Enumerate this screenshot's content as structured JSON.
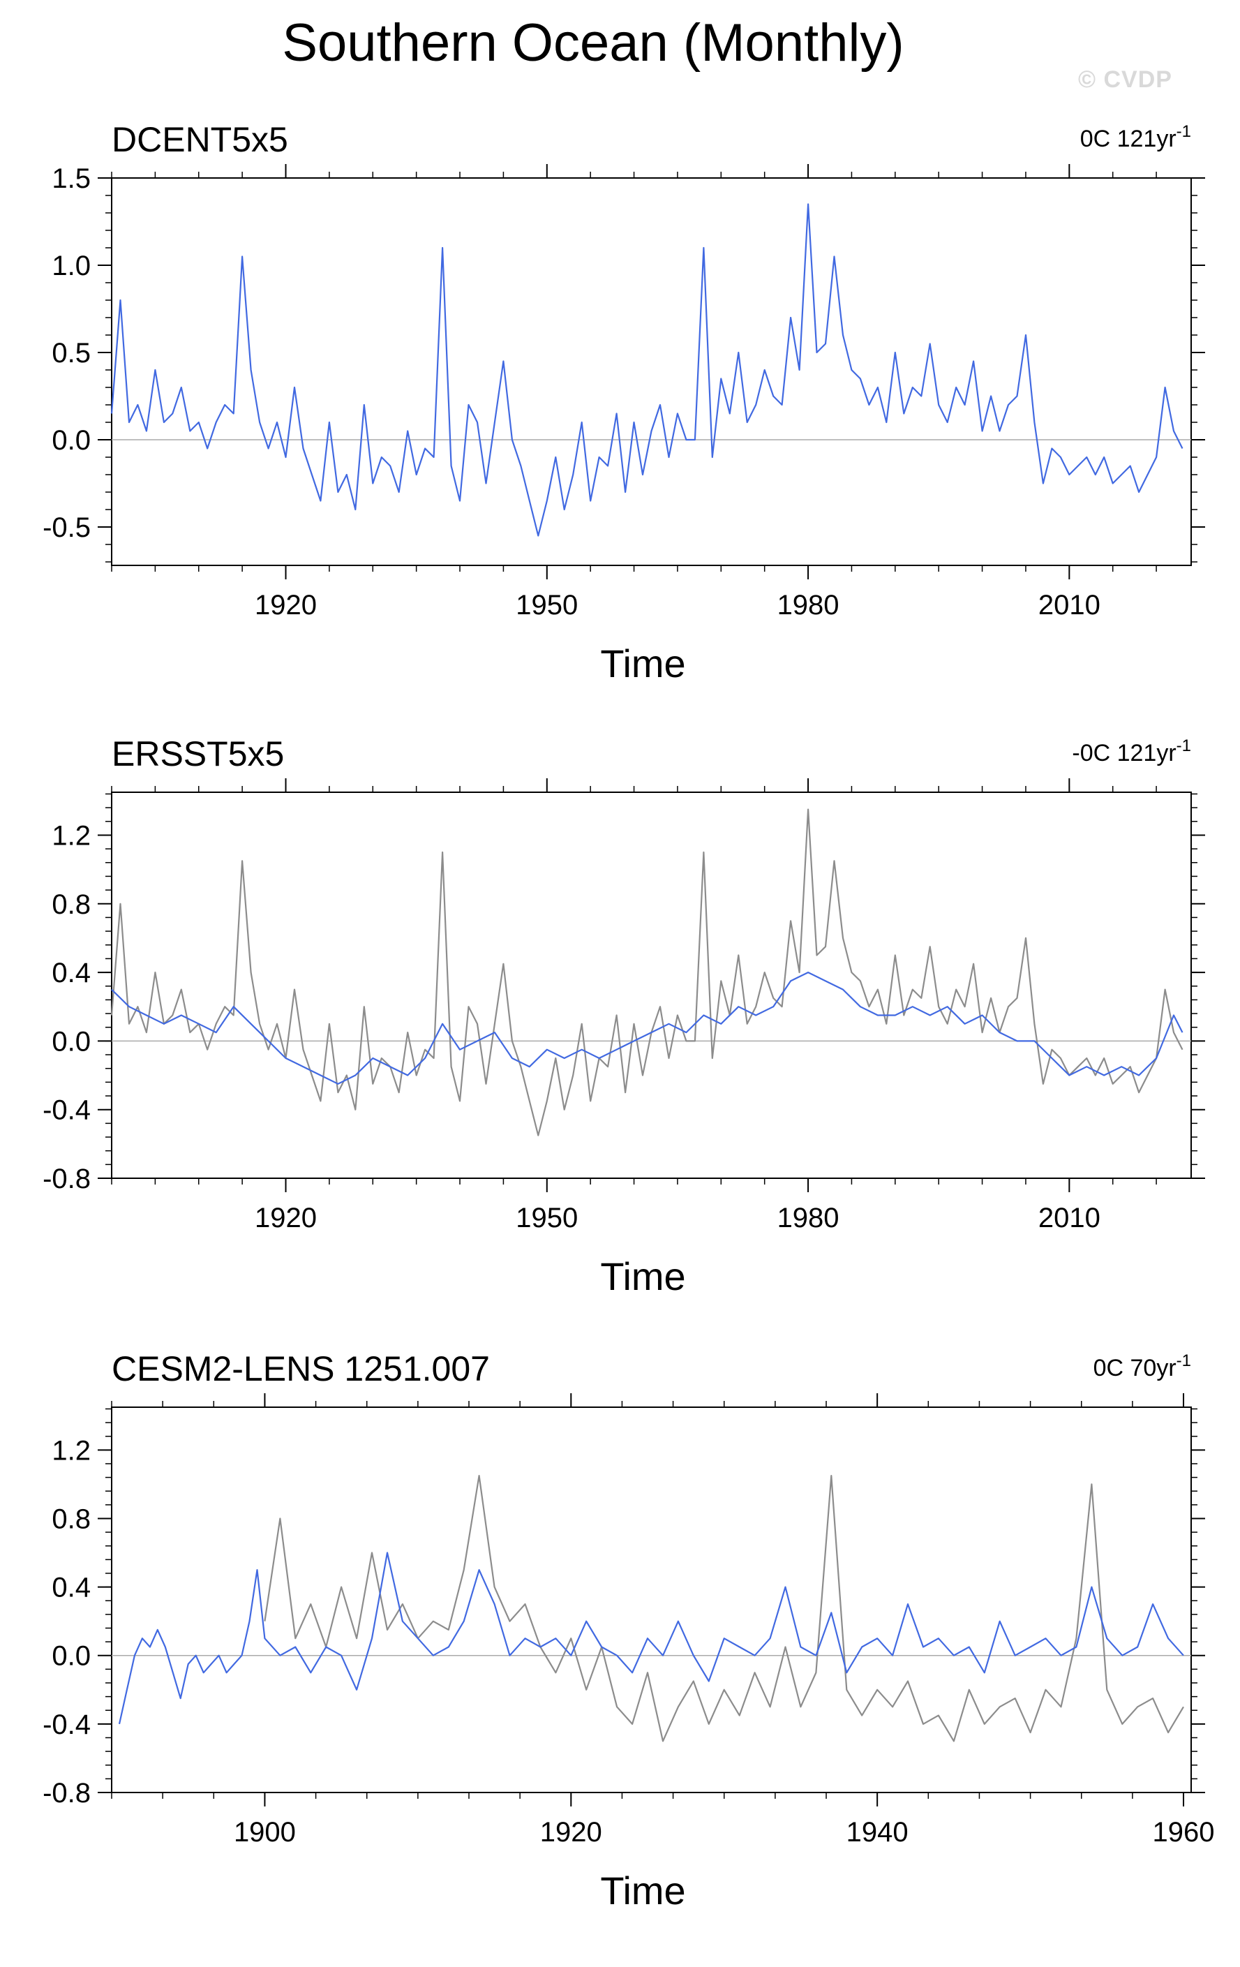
{
  "title": "Southern Ocean (Monthly)",
  "watermark": "© CVDP",
  "colors": {
    "primary": "#4169e1",
    "secondary": "#8c8c8c",
    "zero": "#aaaaaa",
    "axis": "#000000"
  },
  "chart_data": [
    {
      "type": "line",
      "panel_title": "DCENT5x5",
      "trend": {
        "value": "0C 121yr",
        "exponent": "-1"
      },
      "xlabel": "Time",
      "xlim": [
        1900,
        2024
      ],
      "xticks": [
        1920,
        1950,
        1980,
        2010
      ],
      "ylim": [
        -0.72,
        1.5
      ],
      "yticks": [
        1.5,
        1.0,
        0.5,
        0.0,
        -0.5
      ],
      "ytick_labels": [
        "1.5",
        "1.0",
        "0.5",
        "0.0",
        "-0.5"
      ],
      "grid": false,
      "series": [
        {
          "role": "monthly",
          "color": "#4169e1",
          "x": [
            1900,
            1901,
            1902,
            1903,
            1904,
            1905,
            1906,
            1907,
            1908,
            1909,
            1910,
            1911,
            1912,
            1913,
            1914,
            1915,
            1916,
            1917,
            1918,
            1919,
            1920,
            1921,
            1922,
            1923,
            1924,
            1925,
            1926,
            1927,
            1928,
            1929,
            1930,
            1931,
            1932,
            1933,
            1934,
            1935,
            1936,
            1937,
            1938,
            1939,
            1940,
            1941,
            1942,
            1943,
            1944,
            1945,
            1946,
            1947,
            1948,
            1949,
            1950,
            1951,
            1952,
            1953,
            1954,
            1955,
            1956,
            1957,
            1958,
            1959,
            1960,
            1961,
            1962,
            1963,
            1964,
            1965,
            1966,
            1967,
            1968,
            1969,
            1970,
            1971,
            1972,
            1973,
            1974,
            1975,
            1976,
            1977,
            1978,
            1979,
            1980,
            1981,
            1982,
            1983,
            1984,
            1985,
            1986,
            1987,
            1988,
            1989,
            1990,
            1991,
            1992,
            1993,
            1994,
            1995,
            1996,
            1997,
            1998,
            1999,
            2000,
            2001,
            2002,
            2003,
            2004,
            2005,
            2006,
            2007,
            2008,
            2009,
            2010,
            2011,
            2012,
            2013,
            2014,
            2015,
            2016,
            2017,
            2018,
            2019,
            2020,
            2021,
            2022,
            2023
          ],
          "y": [
            0.15,
            0.8,
            0.1,
            0.2,
            0.05,
            0.4,
            0.1,
            0.15,
            0.3,
            0.05,
            0.1,
            -0.05,
            0.1,
            0.2,
            0.15,
            1.05,
            0.4,
            0.1,
            -0.05,
            0.1,
            -0.1,
            0.3,
            -0.05,
            -0.2,
            -0.35,
            0.1,
            -0.3,
            -0.2,
            -0.4,
            0.2,
            -0.25,
            -0.1,
            -0.15,
            -0.3,
            0.05,
            -0.2,
            -0.05,
            -0.1,
            1.1,
            -0.15,
            -0.35,
            0.2,
            0.1,
            -0.25,
            0.1,
            0.45,
            0.0,
            -0.15,
            -0.35,
            -0.55,
            -0.35,
            -0.1,
            -0.4,
            -0.2,
            0.1,
            -0.35,
            -0.1,
            -0.15,
            0.15,
            -0.3,
            0.1,
            -0.2,
            0.05,
            0.2,
            -0.1,
            0.15,
            0.0,
            0.0,
            1.1,
            -0.1,
            0.35,
            0.15,
            0.5,
            0.1,
            0.2,
            0.4,
            0.25,
            0.2,
            0.7,
            0.4,
            1.35,
            0.5,
            0.55,
            1.05,
            0.6,
            0.4,
            0.35,
            0.2,
            0.3,
            0.1,
            0.5,
            0.15,
            0.3,
            0.25,
            0.55,
            0.2,
            0.1,
            0.3,
            0.2,
            0.45,
            0.05,
            0.25,
            0.05,
            0.2,
            0.25,
            0.6,
            0.1,
            -0.25,
            -0.05,
            -0.1,
            -0.2,
            -0.15,
            -0.1,
            -0.2,
            -0.1,
            -0.25,
            -0.2,
            -0.15,
            -0.3,
            -0.2,
            -0.1,
            0.3,
            0.05,
            -0.05
          ]
        }
      ]
    },
    {
      "type": "line",
      "panel_title": "ERSST5x5",
      "trend": {
        "value": "-0C 121yr",
        "exponent": "-1"
      },
      "xlabel": "Time",
      "xlim": [
        1900,
        2024
      ],
      "xticks": [
        1920,
        1950,
        1980,
        2010
      ],
      "ylim": [
        -0.8,
        1.45
      ],
      "yticks": [
        1.2,
        0.8,
        0.4,
        0.0,
        -0.4,
        -0.8
      ],
      "ytick_labels": [
        "1.2",
        "0.8",
        "0.4",
        "0.0",
        "-0.4",
        "-0.8"
      ],
      "grid": false,
      "series": [
        {
          "role": "monthly",
          "color": "#8c8c8c",
          "x": [
            1900,
            1901,
            1902,
            1903,
            1904,
            1905,
            1906,
            1907,
            1908,
            1909,
            1910,
            1911,
            1912,
            1913,
            1914,
            1915,
            1916,
            1917,
            1918,
            1919,
            1920,
            1921,
            1922,
            1923,
            1924,
            1925,
            1926,
            1927,
            1928,
            1929,
            1930,
            1931,
            1932,
            1933,
            1934,
            1935,
            1936,
            1937,
            1938,
            1939,
            1940,
            1941,
            1942,
            1943,
            1944,
            1945,
            1946,
            1947,
            1948,
            1949,
            1950,
            1951,
            1952,
            1953,
            1954,
            1955,
            1956,
            1957,
            1958,
            1959,
            1960,
            1961,
            1962,
            1963,
            1964,
            1965,
            1966,
            1967,
            1968,
            1969,
            1970,
            1971,
            1972,
            1973,
            1974,
            1975,
            1976,
            1977,
            1978,
            1979,
            1980,
            1981,
            1982,
            1983,
            1984,
            1985,
            1986,
            1987,
            1988,
            1989,
            1990,
            1991,
            1992,
            1993,
            1994,
            1995,
            1996,
            1997,
            1998,
            1999,
            2000,
            2001,
            2002,
            2003,
            2004,
            2005,
            2006,
            2007,
            2008,
            2009,
            2010,
            2011,
            2012,
            2013,
            2014,
            2015,
            2016,
            2017,
            2018,
            2019,
            2020,
            2021,
            2022,
            2023
          ],
          "y": [
            0.15,
            0.8,
            0.1,
            0.2,
            0.05,
            0.4,
            0.1,
            0.15,
            0.3,
            0.05,
            0.1,
            -0.05,
            0.1,
            0.2,
            0.15,
            1.05,
            0.4,
            0.1,
            -0.05,
            0.1,
            -0.1,
            0.3,
            -0.05,
            -0.2,
            -0.35,
            0.1,
            -0.3,
            -0.2,
            -0.4,
            0.2,
            -0.25,
            -0.1,
            -0.15,
            -0.3,
            0.05,
            -0.2,
            -0.05,
            -0.1,
            1.1,
            -0.15,
            -0.35,
            0.2,
            0.1,
            -0.25,
            0.1,
            0.45,
            0.0,
            -0.15,
            -0.35,
            -0.55,
            -0.35,
            -0.1,
            -0.4,
            -0.2,
            0.1,
            -0.35,
            -0.1,
            -0.15,
            0.15,
            -0.3,
            0.1,
            -0.2,
            0.05,
            0.2,
            -0.1,
            0.15,
            0.0,
            0.0,
            1.1,
            -0.1,
            0.35,
            0.15,
            0.5,
            0.1,
            0.2,
            0.4,
            0.25,
            0.2,
            0.7,
            0.4,
            1.35,
            0.5,
            0.55,
            1.05,
            0.6,
            0.4,
            0.35,
            0.2,
            0.3,
            0.1,
            0.5,
            0.15,
            0.3,
            0.25,
            0.55,
            0.2,
            0.1,
            0.3,
            0.2,
            0.45,
            0.05,
            0.25,
            0.05,
            0.2,
            0.25,
            0.6,
            0.1,
            -0.25,
            -0.05,
            -0.1,
            -0.2,
            -0.15,
            -0.1,
            -0.2,
            -0.1,
            -0.25,
            -0.2,
            -0.15,
            -0.3,
            -0.2,
            -0.1,
            0.3,
            0.05,
            -0.05
          ]
        },
        {
          "role": "monthly",
          "color": "#4169e1",
          "x": [
            1900,
            1902,
            1904,
            1906,
            1908,
            1910,
            1912,
            1914,
            1916,
            1918,
            1920,
            1922,
            1924,
            1926,
            1928,
            1930,
            1932,
            1934,
            1936,
            1938,
            1940,
            1942,
            1944,
            1946,
            1948,
            1950,
            1952,
            1954,
            1956,
            1958,
            1960,
            1962,
            1964,
            1966,
            1968,
            1970,
            1972,
            1974,
            1976,
            1978,
            1980,
            1982,
            1984,
            1986,
            1988,
            1990,
            1992,
            1994,
            1996,
            1998,
            2000,
            2002,
            2004,
            2006,
            2008,
            2010,
            2012,
            2014,
            2016,
            2018,
            2020,
            2022,
            2023
          ],
          "y": [
            0.3,
            0.2,
            0.15,
            0.1,
            0.15,
            0.1,
            0.05,
            0.2,
            0.1,
            0.0,
            -0.1,
            -0.15,
            -0.2,
            -0.25,
            -0.2,
            -0.1,
            -0.15,
            -0.2,
            -0.1,
            0.1,
            -0.05,
            0.0,
            0.05,
            -0.1,
            -0.15,
            -0.05,
            -0.1,
            -0.05,
            -0.1,
            -0.05,
            0.0,
            0.05,
            0.1,
            0.05,
            0.15,
            0.1,
            0.2,
            0.15,
            0.2,
            0.35,
            0.4,
            0.35,
            0.3,
            0.2,
            0.15,
            0.15,
            0.2,
            0.15,
            0.2,
            0.1,
            0.15,
            0.05,
            0.0,
            0.0,
            -0.1,
            -0.2,
            -0.15,
            -0.2,
            -0.15,
            -0.2,
            -0.1,
            0.15,
            0.05
          ]
        }
      ]
    },
    {
      "type": "line",
      "panel_title": "CESM2-LENS 1251.007",
      "trend": {
        "value": "0C 70yr",
        "exponent": "-1"
      },
      "xlabel": "Time",
      "xlim": [
        1890,
        1960.5
      ],
      "xticks": [
        1900,
        1920,
        1940,
        1960
      ],
      "ylim": [
        -0.8,
        1.45
      ],
      "yticks": [
        1.2,
        0.8,
        0.4,
        0.0,
        -0.4,
        -0.8
      ],
      "ytick_labels": [
        "1.2",
        "0.8",
        "0.4",
        "0.0",
        "-0.4",
        "-0.8"
      ],
      "grid": false,
      "series": [
        {
          "role": "monthly",
          "color": "#8c8c8c",
          "x": [
            1900,
            1901,
            1902,
            1903,
            1904,
            1905,
            1906,
            1907,
            1908,
            1909,
            1910,
            1911,
            1912,
            1913,
            1914,
            1915,
            1916,
            1917,
            1918,
            1919,
            1920,
            1921,
            1922,
            1923,
            1924,
            1925,
            1926,
            1927,
            1928,
            1929,
            1930,
            1931,
            1932,
            1933,
            1934,
            1935,
            1936,
            1937,
            1938,
            1939,
            1940,
            1941,
            1942,
            1943,
            1944,
            1945,
            1946,
            1947,
            1948,
            1949,
            1950,
            1951,
            1952,
            1953,
            1954,
            1955,
            1956,
            1957,
            1958,
            1959,
            1960
          ],
          "y": [
            0.2,
            0.8,
            0.1,
            0.3,
            0.05,
            0.4,
            0.1,
            0.6,
            0.15,
            0.3,
            0.1,
            0.2,
            0.15,
            0.5,
            1.05,
            0.4,
            0.2,
            0.3,
            0.05,
            -0.1,
            0.1,
            -0.2,
            0.05,
            -0.3,
            -0.4,
            -0.1,
            -0.5,
            -0.3,
            -0.15,
            -0.4,
            -0.2,
            -0.35,
            -0.1,
            -0.3,
            0.05,
            -0.3,
            -0.1,
            1.05,
            -0.2,
            -0.35,
            -0.2,
            -0.3,
            -0.15,
            -0.4,
            -0.35,
            -0.5,
            -0.2,
            -0.4,
            -0.3,
            -0.25,
            -0.45,
            -0.2,
            -0.3,
            0.1,
            1.0,
            -0.2,
            -0.4,
            -0.3,
            -0.25,
            -0.45,
            -0.3
          ]
        },
        {
          "role": "monthly",
          "color": "#4169e1",
          "x": [
            1890.5,
            1891,
            1891.5,
            1892,
            1892.5,
            1893,
            1893.5,
            1894,
            1894.5,
            1895,
            1895.5,
            1896,
            1896.5,
            1897,
            1897.5,
            1898,
            1898.5,
            1899,
            1899.5,
            1900,
            1901,
            1902,
            1903,
            1904,
            1905,
            1906,
            1907,
            1908,
            1909,
            1910,
            1911,
            1912,
            1913,
            1914,
            1915,
            1916,
            1917,
            1918,
            1919,
            1920,
            1921,
            1922,
            1923,
            1924,
            1925,
            1926,
            1927,
            1928,
            1929,
            1930,
            1931,
            1932,
            1933,
            1934,
            1935,
            1936,
            1937,
            1938,
            1939,
            1940,
            1941,
            1942,
            1943,
            1944,
            1945,
            1946,
            1947,
            1948,
            1949,
            1950,
            1951,
            1952,
            1953,
            1954,
            1955,
            1956,
            1957,
            1958,
            1959,
            1960
          ],
          "y": [
            -0.4,
            -0.2,
            0.0,
            0.1,
            0.05,
            0.15,
            0.05,
            -0.1,
            -0.25,
            -0.05,
            0.0,
            -0.1,
            -0.05,
            0.0,
            -0.1,
            -0.05,
            0.0,
            0.2,
            0.5,
            0.1,
            0.0,
            0.05,
            -0.1,
            0.05,
            0.0,
            -0.2,
            0.1,
            0.6,
            0.2,
            0.1,
            0.0,
            0.05,
            0.2,
            0.5,
            0.3,
            0.0,
            0.1,
            0.05,
            0.1,
            0.0,
            0.2,
            0.05,
            0.0,
            -0.1,
            0.1,
            0.0,
            0.2,
            0.0,
            -0.15,
            0.1,
            0.05,
            0.0,
            0.1,
            0.4,
            0.05,
            0.0,
            0.25,
            -0.1,
            0.05,
            0.1,
            0.0,
            0.3,
            0.05,
            0.1,
            0.0,
            0.05,
            -0.1,
            0.2,
            0.0,
            0.05,
            0.1,
            0.0,
            0.05,
            0.4,
            0.1,
            0.0,
            0.05,
            0.3,
            0.1,
            0.0
          ]
        }
      ]
    }
  ]
}
